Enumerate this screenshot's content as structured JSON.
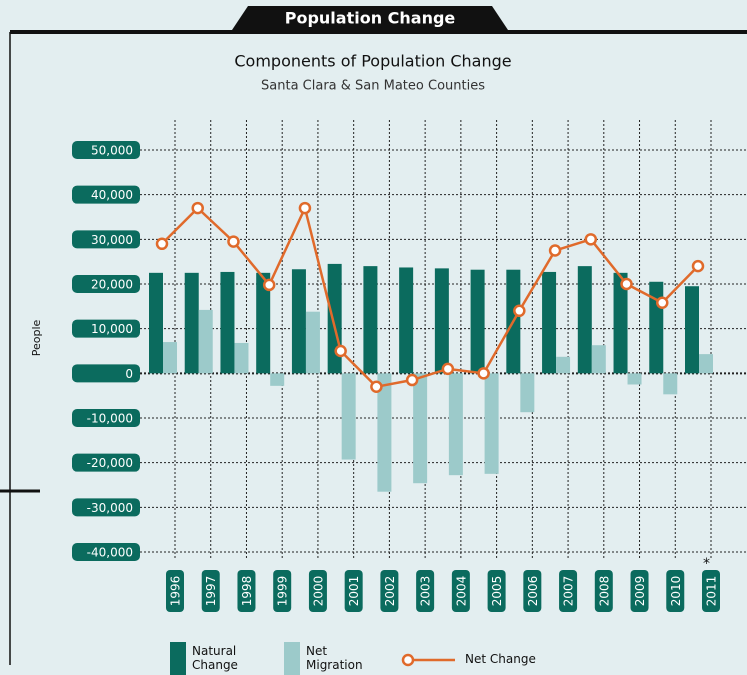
{
  "header": "Population Change",
  "chart_data": {
    "type": "bar-line",
    "title": "Components of Population Change",
    "subtitle": "Santa Clara & San Mateo Counties",
    "ylabel": "People",
    "annotation": "*",
    "categories": [
      "1996",
      "1997",
      "1998",
      "1999",
      "2000",
      "2001",
      "2002",
      "2003",
      "2004",
      "2005",
      "2006",
      "2007",
      "2008",
      "2009",
      "2010",
      "2011"
    ],
    "series": [
      {
        "name": "Natural Change",
        "color": "#0b6b5e",
        "kind": "bar",
        "values": [
          22500,
          22500,
          22700,
          22500,
          23300,
          24500,
          24000,
          23700,
          23500,
          23200,
          23200,
          22700,
          24000,
          22500,
          20500,
          19500
        ]
      },
      {
        "name": "Net Migration",
        "color": "#9ccaca",
        "kind": "bar",
        "values": [
          7000,
          14200,
          6800,
          -2800,
          13800,
          -19300,
          -26500,
          -24600,
          -22800,
          -22500,
          -8700,
          3700,
          6300,
          -2500,
          -4700,
          4300
        ]
      },
      {
        "name": "Net Change",
        "color": "#e06a2b",
        "kind": "line",
        "values": [
          29000,
          37000,
          29500,
          19800,
          37000,
          5000,
          -3000,
          -1500,
          1000,
          0,
          14000,
          27500,
          30000,
          20000,
          15800,
          24000
        ]
      }
    ],
    "ylim": [
      -40000,
      50000
    ],
    "yticks": [
      {
        "value": 50000,
        "label": "50,000"
      },
      {
        "value": 40000,
        "label": "40,000"
      },
      {
        "value": 30000,
        "label": "30,000"
      },
      {
        "value": 20000,
        "label": "20,000"
      },
      {
        "value": 10000,
        "label": "10,000"
      },
      0,
      {
        "value": -10000,
        "label": "-10,000"
      },
      {
        "value": -20000,
        "label": "-20,000"
      },
      {
        "value": -30000,
        "label": "-30,000"
      },
      {
        "value": -40000,
        "label": "-40,000"
      }
    ],
    "grid": true
  }
}
